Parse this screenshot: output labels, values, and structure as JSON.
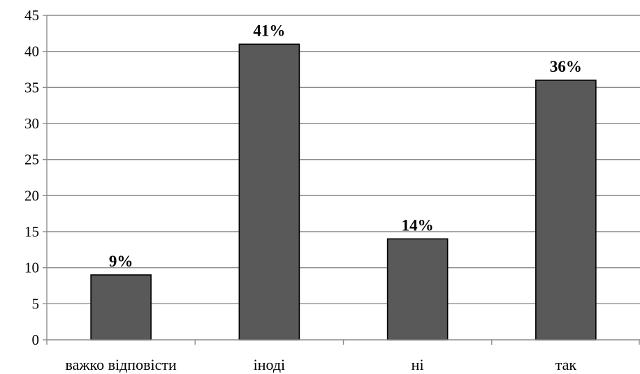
{
  "chart_data": {
    "type": "bar",
    "categories": [
      "важко відповісти",
      "іноді",
      "ні",
      "так"
    ],
    "values": [
      9,
      41,
      14,
      36
    ],
    "data_labels": [
      "9%",
      "41%",
      "14%",
      "36%"
    ],
    "ylim": [
      0,
      45
    ],
    "yticks": [
      0,
      5,
      10,
      15,
      20,
      25,
      30,
      35,
      40,
      45
    ],
    "grid": true,
    "legend": "none",
    "colors": {
      "bar_fill": "#595959",
      "bar_stroke": "#000000",
      "grid": "#8c8c8c",
      "axis": "#8c8c8c"
    }
  }
}
